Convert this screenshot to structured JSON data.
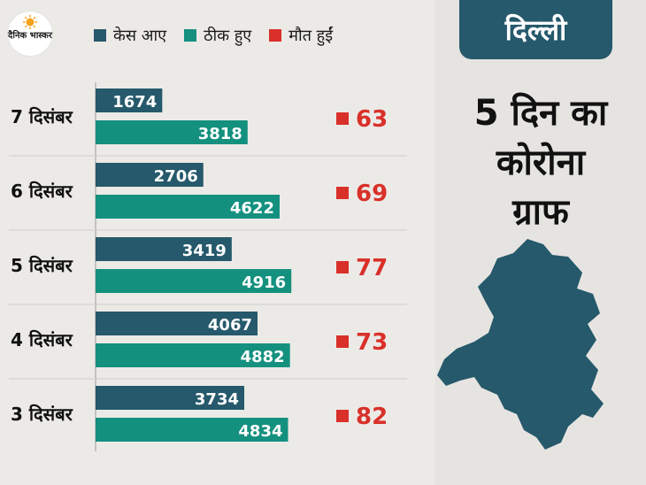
{
  "brand": {
    "logo_text": "दैनिक भास्कर",
    "icon": "sun-icon"
  },
  "legend": [
    {
      "label": "केस आए",
      "color": "#25596b"
    },
    {
      "label": "ठीक हुए",
      "color": "#14907f"
    },
    {
      "label": "मौत हुईं",
      "color": "#d9302a"
    }
  ],
  "panel": {
    "tag": "दिल्ली",
    "headline_lines": [
      "5 दिन का",
      "कोरोना",
      "ग्राफ"
    ],
    "map_icon": "delhi-map-icon"
  },
  "chart_data": {
    "type": "bar",
    "orientation": "horizontal",
    "title": "",
    "xlabel": "",
    "ylabel": "",
    "categories": [
      "7 दिसंबर",
      "6 दिसंबर",
      "5 दिसंबर",
      "4 दिसंबर",
      "3 दिसंबर"
    ],
    "series": [
      {
        "name": "केस आए",
        "color": "#25596b",
        "values": [
          1674,
          2706,
          3419,
          4067,
          3734
        ]
      },
      {
        "name": "ठीक हुए",
        "color": "#14907f",
        "values": [
          3818,
          4622,
          4916,
          4882,
          4834
        ]
      },
      {
        "name": "मौत हुईं",
        "color": "#d9302a",
        "values": [
          63,
          69,
          77,
          73,
          82
        ]
      }
    ],
    "xlim": [
      0,
      5000
    ],
    "grid": false,
    "legend_position": "top"
  }
}
